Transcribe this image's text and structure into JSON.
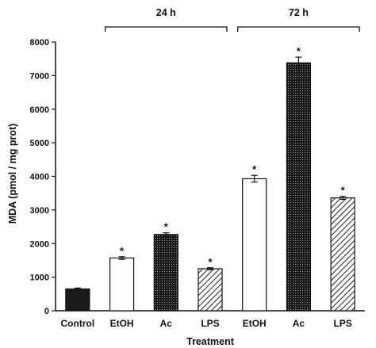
{
  "chart_data": {
    "type": "bar",
    "title": "",
    "xlabel": "Treatment",
    "ylabel": "MDA (pmol / mg prot)",
    "ylim": [
      0,
      8000
    ],
    "yticks": [
      0,
      1000,
      2000,
      3000,
      4000,
      5000,
      6000,
      7000,
      8000
    ],
    "grid": false,
    "categories": [
      "Control",
      "EtOH",
      "Ac",
      "LPS",
      "EtOH",
      "Ac",
      "LPS"
    ],
    "values": [
      650,
      1570,
      2270,
      1250,
      3930,
      7380,
      3360
    ],
    "errors": [
      25,
      40,
      50,
      30,
      100,
      170,
      45
    ],
    "significant": [
      false,
      true,
      true,
      true,
      true,
      true,
      true
    ],
    "significance_marker": "*",
    "fills": [
      "dark",
      "white",
      "dotted",
      "hatched",
      "white",
      "dotted",
      "hatched"
    ],
    "groups": [
      {
        "label": "24 h",
        "from": 1,
        "to": 3
      },
      {
        "label": "72 h",
        "from": 4,
        "to": 6
      }
    ],
    "colors": {
      "dark": "#1a1a1a",
      "outline": "#111111",
      "background": "#ffffff"
    }
  }
}
